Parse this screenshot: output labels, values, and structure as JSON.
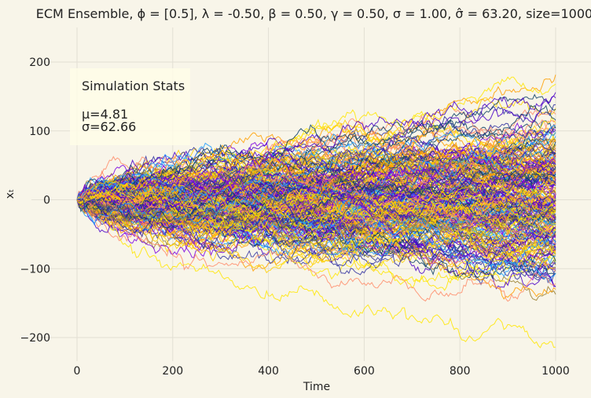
{
  "chart_data": {
    "type": "line",
    "title": "ECM Ensemble, ϕ = [0.5], λ = -0.50, β = 0.50, γ = 0.50, σ = 1.00, σ̂ = 63.20, size=1000",
    "xlabel": "Time",
    "ylabel": "xₜ",
    "xlim": [
      -40,
      1030
    ],
    "ylim": [
      -237,
      255
    ],
    "xticks": [
      0,
      200,
      400,
      600,
      800,
      1000
    ],
    "yticks": [
      -200,
      -100,
      0,
      100,
      200
    ],
    "grid": true,
    "n_paths": 1000,
    "n_steps": 1000,
    "sigma_hat": 63.2,
    "colors": [
      "#ffe600",
      "#ff9f00",
      "#4a00c8",
      "#7b00e0",
      "#1f9fff",
      "#0a3e66",
      "#ff8c6a",
      "#9a8030",
      "#ffd000",
      "#3030a0"
    ],
    "stats_box": {
      "title": "Simulation Stats",
      "mu": "μ=4.81",
      "sigma": "σ=62.66"
    }
  }
}
